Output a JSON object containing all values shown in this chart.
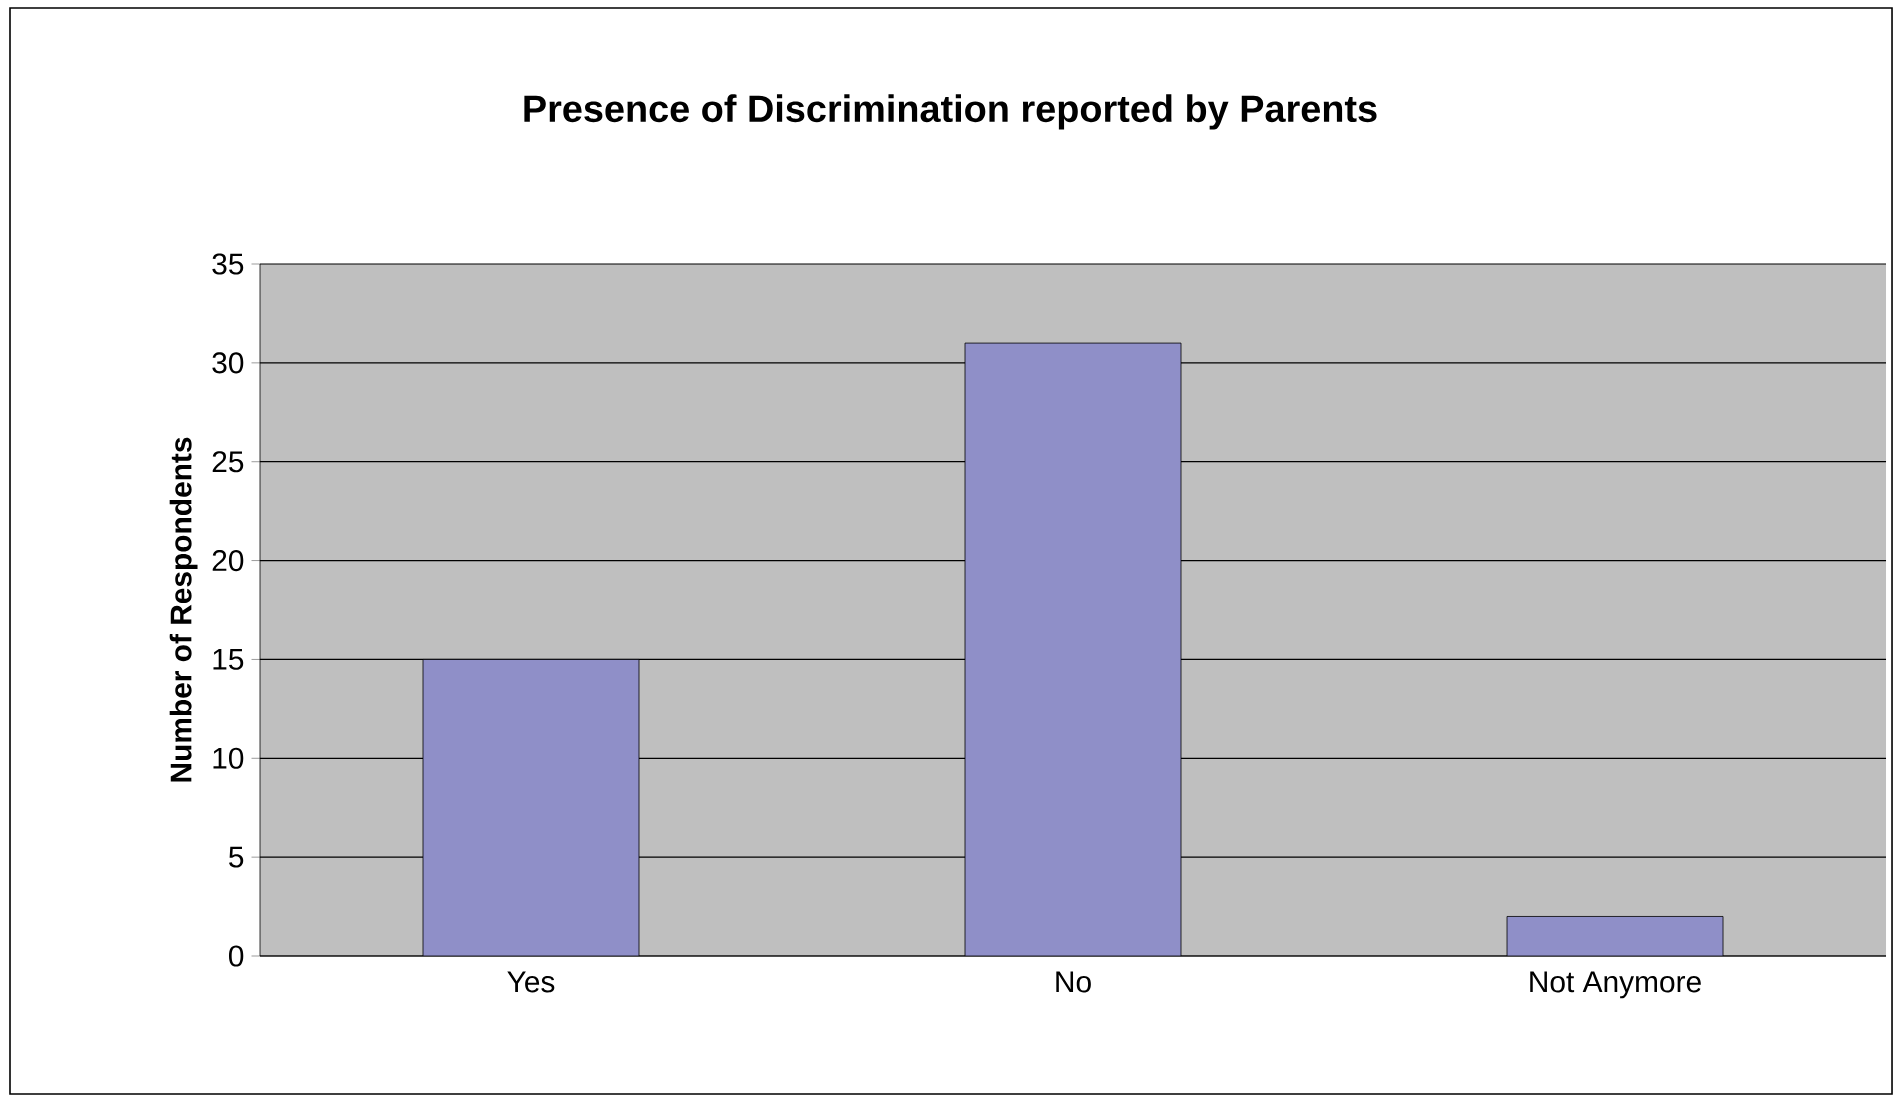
{
  "chart_data": {
    "type": "bar",
    "title": "Presence of Discrimination reported by Parents",
    "ylabel": "Number of Respondents",
    "categories": [
      "Yes",
      "No",
      "Not Anymore"
    ],
    "values": [
      15,
      31,
      2
    ],
    "color": "#8f8fc8",
    "ylim": [
      0,
      35
    ],
    "yticks": [
      0,
      5,
      10,
      15,
      20,
      25,
      30,
      35
    ],
    "grid": "y"
  }
}
